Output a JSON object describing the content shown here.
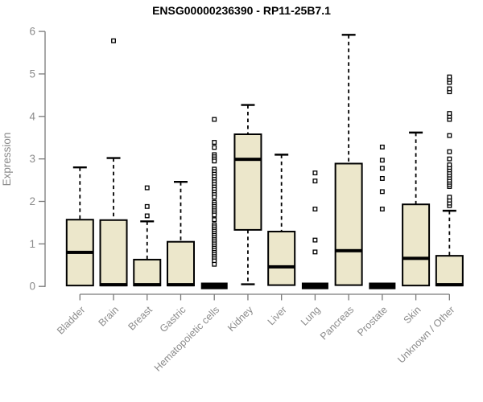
{
  "colors": {
    "box_fill": "#ece7cb",
    "box_stroke": "#000000",
    "axis": "#7a7a7a",
    "label_gray": "#8b8b8b",
    "title": "#000000",
    "background": "#ffffff"
  },
  "chart_data": {
    "type": "box",
    "title": "ENSG00000236390 - RP11-25B7.1",
    "xlabel": "",
    "ylabel": "Expression",
    "ylim": [
      0,
      6
    ],
    "yticks": [
      0,
      1,
      2,
      3,
      4,
      5,
      6
    ],
    "grid": false,
    "legend": false,
    "categories": [
      "Bladder",
      "Brain",
      "Breast",
      "Gastric",
      "Hematopoietic cells",
      "Kidney",
      "Liver",
      "Lung",
      "Pancreas",
      "Prostate",
      "Skin",
      "Unknown / Other"
    ],
    "boxes": [
      {
        "category": "Bladder",
        "low": 0.02,
        "q1": 0.02,
        "median": 0.8,
        "q3": 1.57,
        "high": 2.8,
        "outliers": []
      },
      {
        "category": "Brain",
        "low": 0.02,
        "q1": 0.02,
        "median": 0.04,
        "q3": 1.56,
        "high": 3.02,
        "outliers": [
          5.78
        ]
      },
      {
        "category": "Breast",
        "low": 0.02,
        "q1": 0.02,
        "median": 0.04,
        "q3": 0.63,
        "high": 1.53,
        "outliers": [
          1.66,
          1.88,
          2.32
        ]
      },
      {
        "category": "Gastric",
        "low": 0.02,
        "q1": 0.02,
        "median": 0.04,
        "q3": 1.05,
        "high": 2.46,
        "outliers": []
      },
      {
        "category": "Hematopoietic cells",
        "low": 0,
        "q1": 0,
        "median": 0.03,
        "q3": 0.07,
        "high": 0.07,
        "outliers": [
          3.93,
          3.39,
          3.27,
          3.1,
          3.05,
          3.0,
          2.95,
          2.76,
          2.7,
          2.64,
          2.58,
          2.52,
          2.46,
          2.4,
          2.34,
          2.28,
          2.22,
          2.16,
          2.1,
          1.98,
          1.93,
          1.88,
          1.83,
          1.78,
          1.73,
          1.68,
          1.57,
          1.45,
          1.4,
          1.35,
          1.3,
          1.25,
          1.2,
          1.15,
          1.1,
          1.05,
          1.0,
          0.95,
          0.9,
          0.85,
          0.8,
          0.75,
          0.7,
          0.65,
          0.6,
          0.52
        ]
      },
      {
        "category": "Kidney",
        "low": 0.05,
        "q1": 1.33,
        "median": 2.99,
        "q3": 3.58,
        "high": 4.27,
        "outliers": []
      },
      {
        "category": "Liver",
        "low": 0.03,
        "q1": 0.03,
        "median": 0.46,
        "q3": 1.29,
        "high": 3.1,
        "outliers": []
      },
      {
        "category": "Lung",
        "low": 0,
        "q1": 0,
        "median": 0.03,
        "q3": 0.07,
        "high": 0.07,
        "outliers": [
          0.81,
          1.09,
          1.82,
          2.48,
          2.67
        ]
      },
      {
        "category": "Pancreas",
        "low": 0.03,
        "q1": 0.03,
        "median": 0.84,
        "q3": 2.89,
        "high": 5.92,
        "outliers": []
      },
      {
        "category": "Prostate",
        "low": 0,
        "q1": 0,
        "median": 0.03,
        "q3": 0.07,
        "high": 0.07,
        "outliers": [
          1.82,
          2.23,
          2.54,
          2.78,
          2.97,
          3.28
        ]
      },
      {
        "category": "Skin",
        "low": 0.02,
        "q1": 0.02,
        "median": 0.66,
        "q3": 1.93,
        "high": 3.62,
        "outliers": []
      },
      {
        "category": "Unknown / Other",
        "low": 0.02,
        "q1": 0.02,
        "median": 0.04,
        "q3": 0.72,
        "high": 1.78,
        "outliers": [
          1.9,
          1.96,
          2.03,
          2.1,
          2.35,
          2.4,
          2.45,
          2.5,
          2.56,
          2.62,
          2.68,
          2.74,
          2.8,
          2.86,
          3.0,
          3.17,
          3.55,
          3.93,
          4.0,
          4.07,
          4.58,
          4.65,
          4.8,
          4.87,
          4.93
        ]
      }
    ]
  }
}
